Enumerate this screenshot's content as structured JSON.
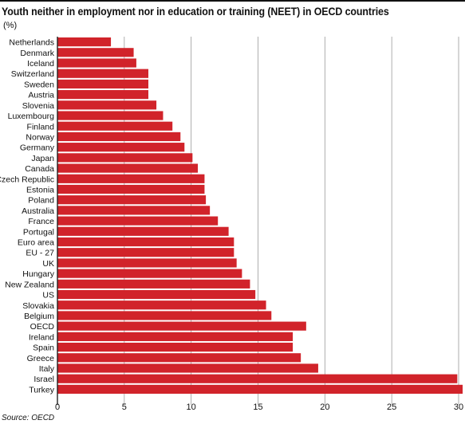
{
  "colors": {
    "bar": "#d1232a",
    "grid": "#9a9a9a",
    "axis": "#222222"
  },
  "source": "Source: OECD",
  "chart_data": {
    "type": "bar",
    "orientation": "horizontal",
    "title": "Youth neither in employment nor in education or training (NEET) in OECD countries",
    "unit": "(%)",
    "xlabel": "",
    "ylabel": "",
    "xlim": [
      0,
      30
    ],
    "xticks": [
      0,
      5,
      10,
      15,
      20,
      25,
      30
    ],
    "grid": true,
    "categories": [
      "Netherlands",
      "Denmark",
      "Iceland",
      "Switzerland",
      "Sweden",
      "Austria",
      "Slovenia",
      "Luxembourg",
      "Finland",
      "Norway",
      "Germany",
      "Japan",
      "Canada",
      "Czech Republic",
      "Estonia",
      "Poland",
      "Australia",
      "France",
      "Portugal",
      "Euro area",
      "EU - 27",
      "UK",
      "Hungary",
      "New Zealand",
      "US",
      "Slovakia",
      "Belgium",
      "OECD",
      "Ireland",
      "Spain",
      "Greece",
      "Italy",
      "Israel",
      "Turkey"
    ],
    "values": [
      4.0,
      5.7,
      5.9,
      6.8,
      6.8,
      6.8,
      7.4,
      7.9,
      8.6,
      9.2,
      9.5,
      10.1,
      10.5,
      11.0,
      11.0,
      11.1,
      11.4,
      12.0,
      12.8,
      13.2,
      13.2,
      13.4,
      13.8,
      14.4,
      14.8,
      15.6,
      16.0,
      18.6,
      17.6,
      17.6,
      18.2,
      19.5,
      29.9,
      30.3
    ]
  }
}
